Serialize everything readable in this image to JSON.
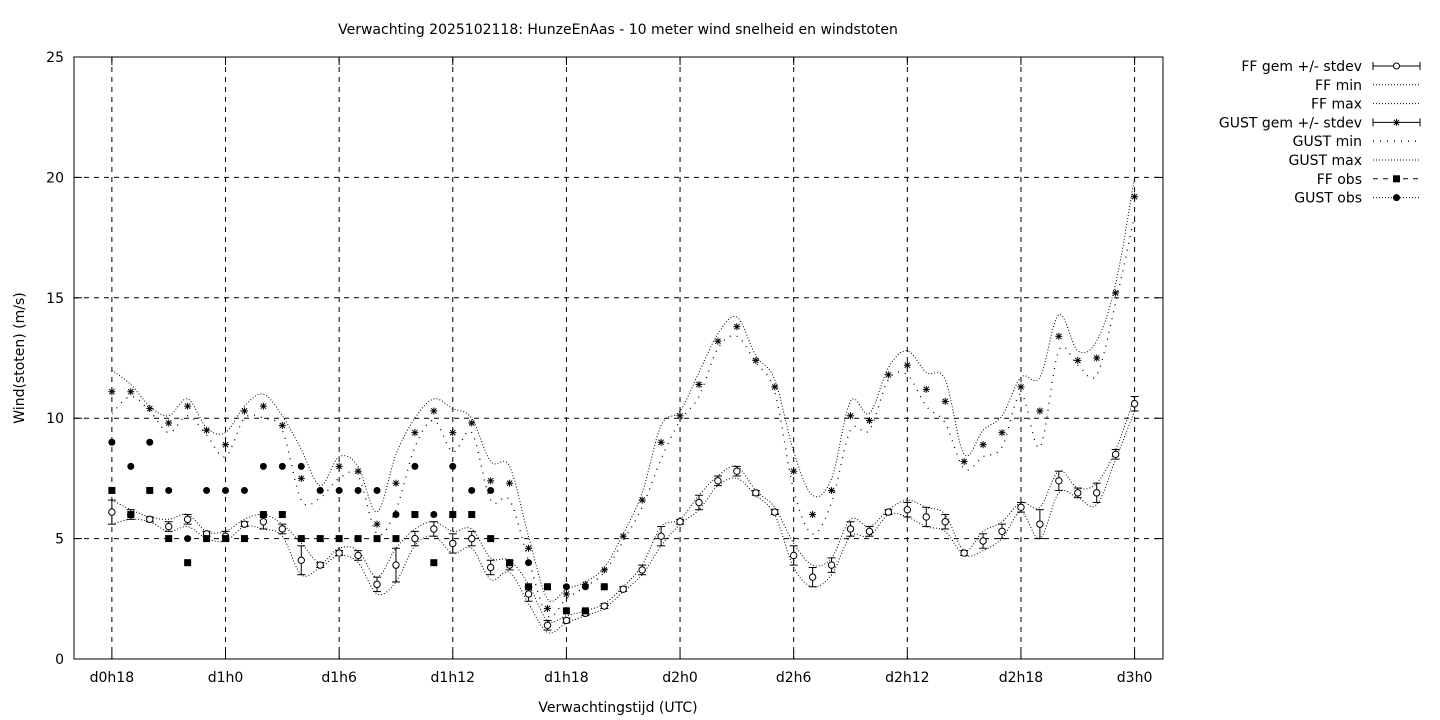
{
  "chart_data": {
    "type": "line",
    "title": "Verwachting 2025102118: HunzeEnAas - 10 meter wind snelheid en windstoten",
    "xlabel": "Verwachtingstijd (UTC)",
    "ylabel": "Wind(stoten) (m/s)",
    "ylim": [
      0,
      25
    ],
    "yticks": [
      0,
      5,
      10,
      15,
      20,
      25
    ],
    "x_unit": "hours since d0h18",
    "xlim": [
      -2,
      55.5
    ],
    "xticks": [
      {
        "x": 0,
        "label": "d0h18"
      },
      {
        "x": 6,
        "label": "d1h0"
      },
      {
        "x": 12,
        "label": "d1h6"
      },
      {
        "x": 18,
        "label": "d1h12"
      },
      {
        "x": 24,
        "label": "d1h18"
      },
      {
        "x": 30,
        "label": "d2h0"
      },
      {
        "x": 36,
        "label": "d2h6"
      },
      {
        "x": 42,
        "label": "d2h12"
      },
      {
        "x": 48,
        "label": "d2h18"
      },
      {
        "x": 54,
        "label": "d3h0"
      }
    ],
    "grid": true,
    "legend_position": "outside-right",
    "x": [
      0,
      1,
      2,
      3,
      4,
      5,
      6,
      7,
      8,
      9,
      10,
      11,
      12,
      13,
      14,
      15,
      16,
      17,
      18,
      19,
      20,
      21,
      22,
      23,
      24,
      25,
      26,
      27,
      28,
      29,
      30,
      31,
      32,
      33,
      34,
      35,
      36,
      37,
      38,
      39,
      40,
      41,
      42,
      43,
      44,
      45,
      46,
      47,
      48,
      49,
      50,
      51,
      52,
      53,
      54
    ],
    "series": [
      {
        "name": "FF gem +/- stdev",
        "values": [
          6.1,
          6.0,
          5.8,
          5.5,
          5.8,
          5.2,
          5.1,
          5.6,
          5.7,
          5.4,
          4.1,
          3.9,
          4.4,
          4.3,
          3.1,
          3.9,
          5.0,
          5.4,
          4.8,
          5.0,
          3.8,
          3.9,
          2.7,
          1.4,
          1.6,
          1.9,
          2.2,
          2.9,
          3.7,
          5.1,
          5.7,
          6.5,
          7.4,
          7.8,
          6.9,
          6.1,
          4.3,
          3.4,
          3.9,
          5.4,
          5.3,
          6.1,
          6.2,
          5.9,
          5.7,
          4.4,
          4.9,
          5.3,
          6.3,
          5.6,
          7.4,
          6.9,
          6.9,
          8.5,
          10.6
        ],
        "stdev": [
          0.5,
          0.2,
          0.1,
          0.2,
          0.2,
          0.1,
          0.2,
          0.1,
          0.3,
          0.2,
          0.6,
          0.1,
          0.1,
          0.2,
          0.3,
          0.7,
          0.3,
          0.3,
          0.4,
          0.3,
          0.3,
          0.2,
          0.3,
          0.2,
          0.1,
          0.1,
          0.1,
          0.1,
          0.2,
          0.4,
          0.1,
          0.3,
          0.2,
          0.2,
          0.1,
          0.1,
          0.4,
          0.4,
          0.3,
          0.3,
          0.2,
          0.1,
          0.3,
          0.4,
          0.3,
          0.1,
          0.3,
          0.3,
          0.2,
          0.6,
          0.4,
          0.2,
          0.4,
          0.2,
          0.3
        ]
      },
      {
        "name": "FF min",
        "values": [
          5.6,
          5.8,
          5.7,
          5.3,
          5.5,
          5.0,
          4.9,
          5.5,
          5.4,
          5.1,
          3.5,
          3.8,
          4.3,
          4.0,
          2.7,
          3.2,
          4.7,
          5.1,
          4.4,
          4.6,
          3.3,
          3.6,
          2.3,
          1.1,
          1.5,
          1.8,
          2.1,
          2.8,
          3.5,
          4.7,
          5.6,
          6.2,
          7.2,
          7.5,
          6.8,
          6.0,
          3.8,
          3.0,
          3.5,
          5.1,
          5.1,
          6.0,
          5.9,
          5.5,
          5.3,
          4.3,
          4.5,
          5.0,
          6.1,
          5.0,
          6.9,
          6.7,
          6.4,
          8.3,
          10.3
        ]
      },
      {
        "name": "FF max",
        "values": [
          6.6,
          6.2,
          5.9,
          5.8,
          6.0,
          5.3,
          5.3,
          5.8,
          6.0,
          5.6,
          4.8,
          4.0,
          4.6,
          4.5,
          3.4,
          4.6,
          5.4,
          5.7,
          5.3,
          5.4,
          4.2,
          4.1,
          3.1,
          1.6,
          1.8,
          2.0,
          2.3,
          3.0,
          3.9,
          5.5,
          5.8,
          6.8,
          7.6,
          8.0,
          7.0,
          6.3,
          4.8,
          3.9,
          4.2,
          5.8,
          5.5,
          6.2,
          6.6,
          6.3,
          6.0,
          4.5,
          5.3,
          5.7,
          6.5,
          6.3,
          7.8,
          7.1,
          7.3,
          8.7,
          10.9
        ]
      },
      {
        "name": "GUST gem +/- stdev",
        "values": [
          11.1,
          11.1,
          10.4,
          9.8,
          10.5,
          9.5,
          8.9,
          10.3,
          10.5,
          9.7,
          7.5,
          7.0,
          8.0,
          7.8,
          5.6,
          7.3,
          9.4,
          10.3,
          9.4,
          9.8,
          7.4,
          7.3,
          4.6,
          2.1,
          2.7,
          3.1,
          3.7,
          5.1,
          6.6,
          9.0,
          10.1,
          11.4,
          13.2,
          13.8,
          12.4,
          11.3,
          7.8,
          6.0,
          7.0,
          10.1,
          9.9,
          11.8,
          12.2,
          11.2,
          10.7,
          8.2,
          8.9,
          9.4,
          11.3,
          10.3,
          13.4,
          12.4,
          12.5,
          15.2,
          19.2
        ]
      },
      {
        "name": "GUST min",
        "values": [
          10.2,
          10.9,
          10.3,
          9.4,
          10.1,
          9.3,
          8.4,
          10.0,
          10.0,
          9.5,
          6.6,
          6.7,
          7.5,
          7.6,
          5.2,
          6.2,
          8.8,
          9.9,
          8.6,
          9.4,
          6.6,
          6.6,
          4.1,
          1.8,
          2.5,
          3.0,
          3.6,
          4.9,
          6.3,
          8.3,
          9.9,
          10.9,
          12.9,
          13.4,
          12.3,
          11.1,
          7.0,
          5.2,
          6.5,
          9.5,
          9.5,
          11.6,
          11.8,
          10.5,
          9.8,
          7.9,
          8.4,
          8.8,
          11.0,
          8.8,
          12.8,
          12.2,
          11.8,
          14.8,
          18.4
        ]
      },
      {
        "name": "GUST max",
        "values": [
          12.0,
          11.4,
          10.5,
          10.1,
          10.8,
          9.6,
          9.4,
          10.5,
          11.0,
          10.1,
          8.7,
          7.2,
          8.4,
          8.0,
          6.1,
          8.5,
          10.0,
          10.8,
          10.4,
          10.0,
          8.2,
          8.0,
          5.1,
          2.5,
          2.9,
          3.2,
          3.8,
          5.2,
          6.9,
          9.7,
          10.3,
          11.9,
          13.5,
          14.2,
          12.6,
          11.6,
          8.6,
          6.8,
          7.5,
          10.7,
          10.2,
          12.1,
          12.8,
          11.9,
          11.6,
          8.5,
          9.5,
          10.1,
          11.7,
          11.7,
          14.3,
          12.8,
          13.2,
          15.6,
          20.0
        ]
      },
      {
        "name": "FF obs",
        "x": [
          0,
          1,
          2,
          3,
          4,
          5,
          6,
          7,
          8,
          9,
          10,
          11,
          12,
          13,
          14,
          15,
          16,
          17,
          18,
          19,
          20,
          21,
          22,
          23,
          24,
          25,
          26
        ],
        "values": [
          7,
          6,
          7,
          5,
          4,
          5,
          5,
          5,
          6,
          6,
          5,
          5,
          5,
          5,
          5,
          5,
          6,
          4,
          6,
          6,
          5,
          4,
          3,
          3,
          2,
          2,
          3
        ]
      },
      {
        "name": "GUST obs",
        "x": [
          0,
          1,
          2,
          3,
          4,
          5,
          6,
          7,
          8,
          9,
          10,
          11,
          12,
          13,
          14,
          15,
          16,
          17,
          18,
          19,
          20,
          21,
          22,
          23,
          24,
          25,
          26
        ],
        "values": [
          9,
          8,
          9,
          7,
          5,
          7,
          7,
          7,
          8,
          8,
          8,
          7,
          7,
          7,
          7,
          6,
          8,
          6,
          8,
          7,
          7,
          4,
          4,
          3,
          3,
          3,
          3
        ]
      }
    ]
  }
}
